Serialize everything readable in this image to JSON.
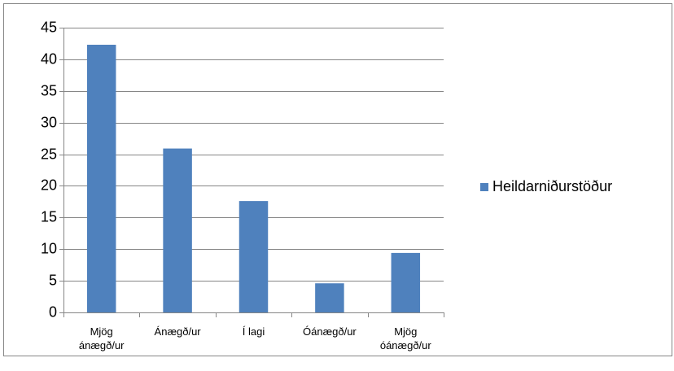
{
  "chart_data": {
    "type": "bar",
    "categories": [
      "Mjög ánægð/ur",
      "Ánægð/ur",
      "Í lagi",
      "Óánægð/ur",
      "Mjög óánægð/ur"
    ],
    "series": [
      {
        "name": "Heildarniðurstöður",
        "color": "#4f81bd",
        "values": [
          42.3,
          25.9,
          17.6,
          4.6,
          9.4
        ]
      }
    ],
    "ylim": [
      0,
      45
    ],
    "yticks": [
      0,
      5,
      10,
      15,
      20,
      25,
      30,
      35,
      40,
      45
    ],
    "grid": true,
    "legend": "right"
  }
}
